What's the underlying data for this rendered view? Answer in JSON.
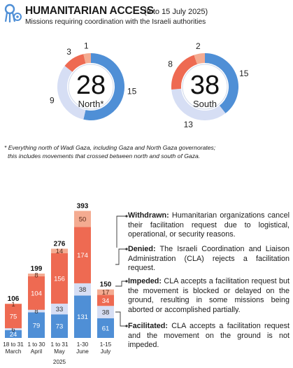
{
  "header": {
    "title": "HUMANITARIAN ACCESS",
    "date_range": "(9 to 15 July 2025)",
    "subtitle": "Missions requiring coordination with the Israeli authorities"
  },
  "footnote": {
    "line1": "* Everything north of Wadi Gaza, including Gaza and North Gaza governorates;",
    "line2": "this includes movements that crossed between north and south of Gaza."
  },
  "colors": {
    "facilitated": "#4f8fd6",
    "impeded": "#d6def4",
    "denied": "#ee6a52",
    "withdrawn": "#f4ab91"
  },
  "chart_data": [
    {
      "type": "pie",
      "title": "",
      "center_number": "28",
      "center_label": "North*",
      "slices": [
        {
          "category": "facilitated",
          "value": 15
        },
        {
          "category": "impeded",
          "value": 9
        },
        {
          "category": "denied",
          "value": 3
        },
        {
          "category": "withdrawn",
          "value": 1
        }
      ]
    },
    {
      "type": "pie",
      "title": "",
      "center_number": "38",
      "center_label": "South",
      "slices": [
        {
          "category": "facilitated",
          "value": 15
        },
        {
          "category": "impeded",
          "value": 13
        },
        {
          "category": "denied",
          "value": 8
        },
        {
          "category": "withdrawn",
          "value": 2
        }
      ]
    },
    {
      "type": "bar",
      "stacked": true,
      "xlabel": "2025",
      "categories": [
        [
          "18 to 31",
          "March"
        ],
        [
          "1 to 30",
          "April"
        ],
        [
          "1 to 31",
          "May"
        ],
        [
          "1-30",
          "June"
        ],
        [
          "1-15",
          "July"
        ]
      ],
      "totals": [
        106,
        199,
        276,
        393,
        150
      ],
      "series": [
        {
          "category": "facilitated",
          "values": [
            24,
            79,
            73,
            131,
            61
          ]
        },
        {
          "category": "impeded",
          "values": [
            6,
            8,
            33,
            38,
            38
          ]
        },
        {
          "category": "denied",
          "values": [
            75,
            104,
            156,
            174,
            34
          ]
        },
        {
          "category": "withdrawn",
          "values": [
            1,
            8,
            14,
            50,
            17
          ]
        }
      ]
    }
  ],
  "legend": {
    "withdrawn": {
      "term": "Withdrawn:",
      "text": "Humanitarian organizations cancel their facilitation request due to logistical, operational, or security reasons."
    },
    "denied": {
      "term": "Denied:",
      "text": "The Israeli Coordination and Liaison Administration (CLA) rejects a facilitation request."
    },
    "impeded": {
      "term": "Impeded:",
      "text": "CLA accepts a facilitation request but the movement is blocked or delayed on the ground, resulting in some missions being aborted or accomplished partially."
    },
    "facilitated": {
      "term": "Facilitated:",
      "text": "CLA accepts a facilitation request and the movement on the ground is not impeded."
    }
  }
}
